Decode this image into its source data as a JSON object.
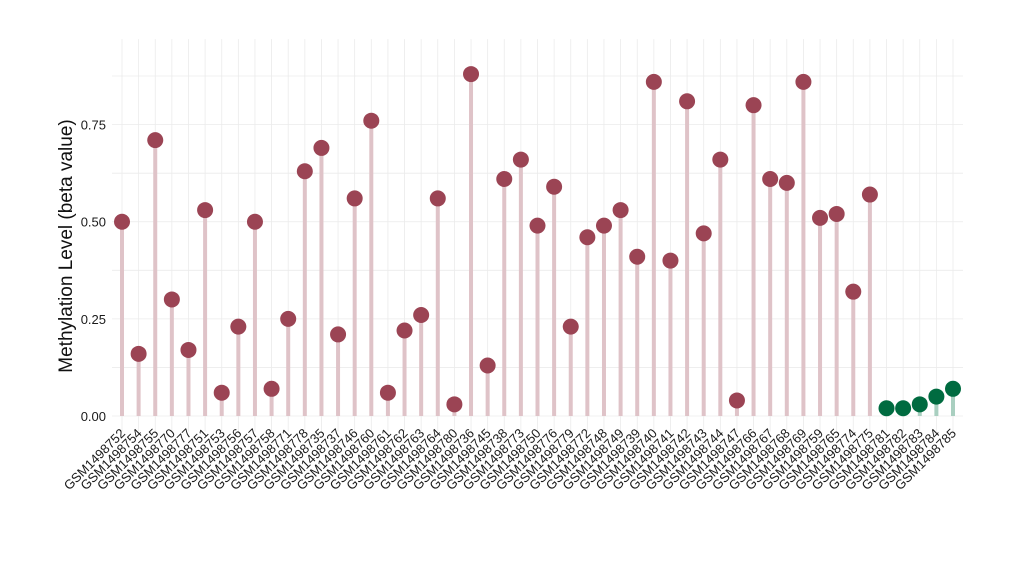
{
  "chart_data": {
    "type": "lollipop",
    "title": "",
    "xlabel": "",
    "ylabel": "Methylation Level (beta value)",
    "ylim": [
      -0.04,
      0.97
    ],
    "yticks": [
      0.0,
      0.25,
      0.5,
      0.75
    ],
    "ytick_labels": [
      "0.00",
      "0.25",
      "0.50",
      "0.75"
    ],
    "grid": true,
    "legend": "none",
    "colors": {
      "group_a_point": "#9b4454",
      "group_a_stem": "#dfc3c8",
      "group_b_point": "#006b40",
      "group_b_stem": "#a9cfc0"
    },
    "categories": [
      "GSM1498752",
      "GSM1498754",
      "GSM1498755",
      "GSM1498770",
      "GSM1498777",
      "GSM1498751",
      "GSM1498753",
      "GSM1498756",
      "GSM1498757",
      "GSM1498758",
      "GSM1498771",
      "GSM1498778",
      "GSM1498735",
      "GSM1498737",
      "GSM1498746",
      "GSM1498760",
      "GSM1498761",
      "GSM1498762",
      "GSM1498763",
      "GSM1498764",
      "GSM1498780",
      "GSM1498736",
      "GSM1498745",
      "GSM1498738",
      "GSM1498773",
      "GSM1498750",
      "GSM1498776",
      "GSM1498779",
      "GSM1498772",
      "GSM1498748",
      "GSM1498749",
      "GSM1498739",
      "GSM1498740",
      "GSM1498741",
      "GSM1498742",
      "GSM1498743",
      "GSM1498744",
      "GSM1498747",
      "GSM1498766",
      "GSM1498767",
      "GSM1498768",
      "GSM1498769",
      "GSM1498759",
      "GSM1498765",
      "GSM1498774",
      "GSM1498775",
      "GSM1498781",
      "GSM1498782",
      "GSM1498783",
      "GSM1498784",
      "GSM1498785"
    ],
    "values": [
      0.5,
      0.16,
      0.71,
      0.3,
      0.17,
      0.53,
      0.06,
      0.23,
      0.5,
      0.07,
      0.25,
      0.63,
      0.69,
      0.21,
      0.56,
      0.76,
      0.06,
      0.22,
      0.26,
      0.56,
      0.03,
      0.88,
      0.13,
      0.61,
      0.66,
      0.49,
      0.59,
      0.23,
      0.46,
      0.49,
      0.53,
      0.41,
      0.86,
      0.4,
      0.81,
      0.47,
      0.66,
      0.04,
      0.8,
      0.61,
      0.6,
      0.86,
      0.51,
      0.52,
      0.32,
      0.57,
      0.02,
      0.02,
      0.03,
      0.05,
      0.07
    ],
    "groups": [
      "a",
      "a",
      "a",
      "a",
      "a",
      "a",
      "a",
      "a",
      "a",
      "a",
      "a",
      "a",
      "a",
      "a",
      "a",
      "a",
      "a",
      "a",
      "a",
      "a",
      "a",
      "a",
      "a",
      "a",
      "a",
      "a",
      "a",
      "a",
      "a",
      "a",
      "a",
      "a",
      "a",
      "a",
      "a",
      "a",
      "a",
      "a",
      "a",
      "a",
      "a",
      "a",
      "a",
      "a",
      "a",
      "a",
      "b",
      "b",
      "b",
      "b",
      "b"
    ]
  }
}
